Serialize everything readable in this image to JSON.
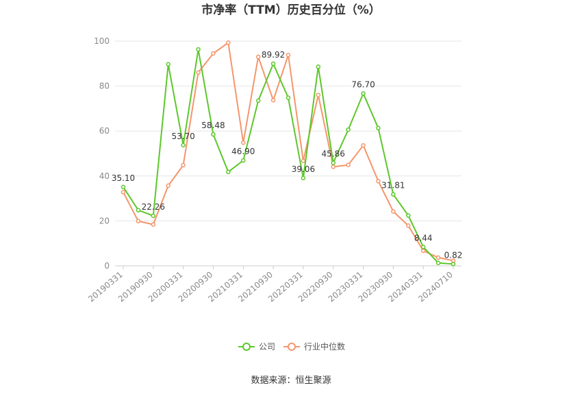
{
  "chart_data": {
    "type": "line",
    "title": "市净率（TTM）历史百分位（%）",
    "x": [
      "20190331",
      "20190630",
      "20190930",
      "20191231",
      "20200331",
      "20200630",
      "20200930",
      "20201231",
      "20210331",
      "20210630",
      "20210930",
      "20211231",
      "20220331",
      "20220630",
      "20220930",
      "20221231",
      "20230331",
      "20230630",
      "20230930",
      "20231231",
      "20240331",
      "20240630",
      "20240710"
    ],
    "x_tick_labels": [
      "20190331",
      "20190930",
      "20200331",
      "20200930",
      "20210331",
      "20210930",
      "20220331",
      "20220930",
      "20230331",
      "20230930",
      "20240331",
      "20240710"
    ],
    "y_ticks": [
      0,
      20,
      40,
      60,
      80,
      100
    ],
    "ylim": [
      0,
      100
    ],
    "series": [
      {
        "name": "公司",
        "color": "#5cc729",
        "values": [
          35.1,
          24.8,
          22.26,
          89.7,
          53.7,
          96.3,
          58.48,
          41.8,
          46.9,
          73.5,
          89.92,
          74.8,
          39.06,
          88.6,
          45.86,
          60.6,
          76.7,
          61.3,
          31.81,
          22.4,
          8.44,
          1.3,
          0.82
        ]
      },
      {
        "name": "行业中位数",
        "color": "#f5956b",
        "values": [
          32.8,
          19.9,
          18.4,
          35.7,
          44.8,
          86.0,
          94.5,
          99.3,
          54.8,
          93.0,
          73.7,
          93.8,
          46.7,
          76.0,
          44.1,
          44.9,
          53.6,
          37.7,
          24.2,
          17.9,
          6.7,
          3.7,
          2.3
        ]
      }
    ],
    "data_labels": [
      {
        "index": 0,
        "text": "35.10"
      },
      {
        "index": 2,
        "text": "22.26"
      },
      {
        "index": 4,
        "text": "53.70"
      },
      {
        "index": 6,
        "text": "58.48"
      },
      {
        "index": 8,
        "text": "46.90"
      },
      {
        "index": 10,
        "text": "89.92"
      },
      {
        "index": 12,
        "text": "39.06"
      },
      {
        "index": 14,
        "text": "45.86"
      },
      {
        "index": 16,
        "text": "76.70"
      },
      {
        "index": 18,
        "text": "31.81"
      },
      {
        "index": 20,
        "text": "8.44"
      },
      {
        "index": 22,
        "text": "0.82"
      }
    ],
    "grid": true,
    "legend": "bottom-center"
  },
  "source": "数据来源：恒生聚源"
}
